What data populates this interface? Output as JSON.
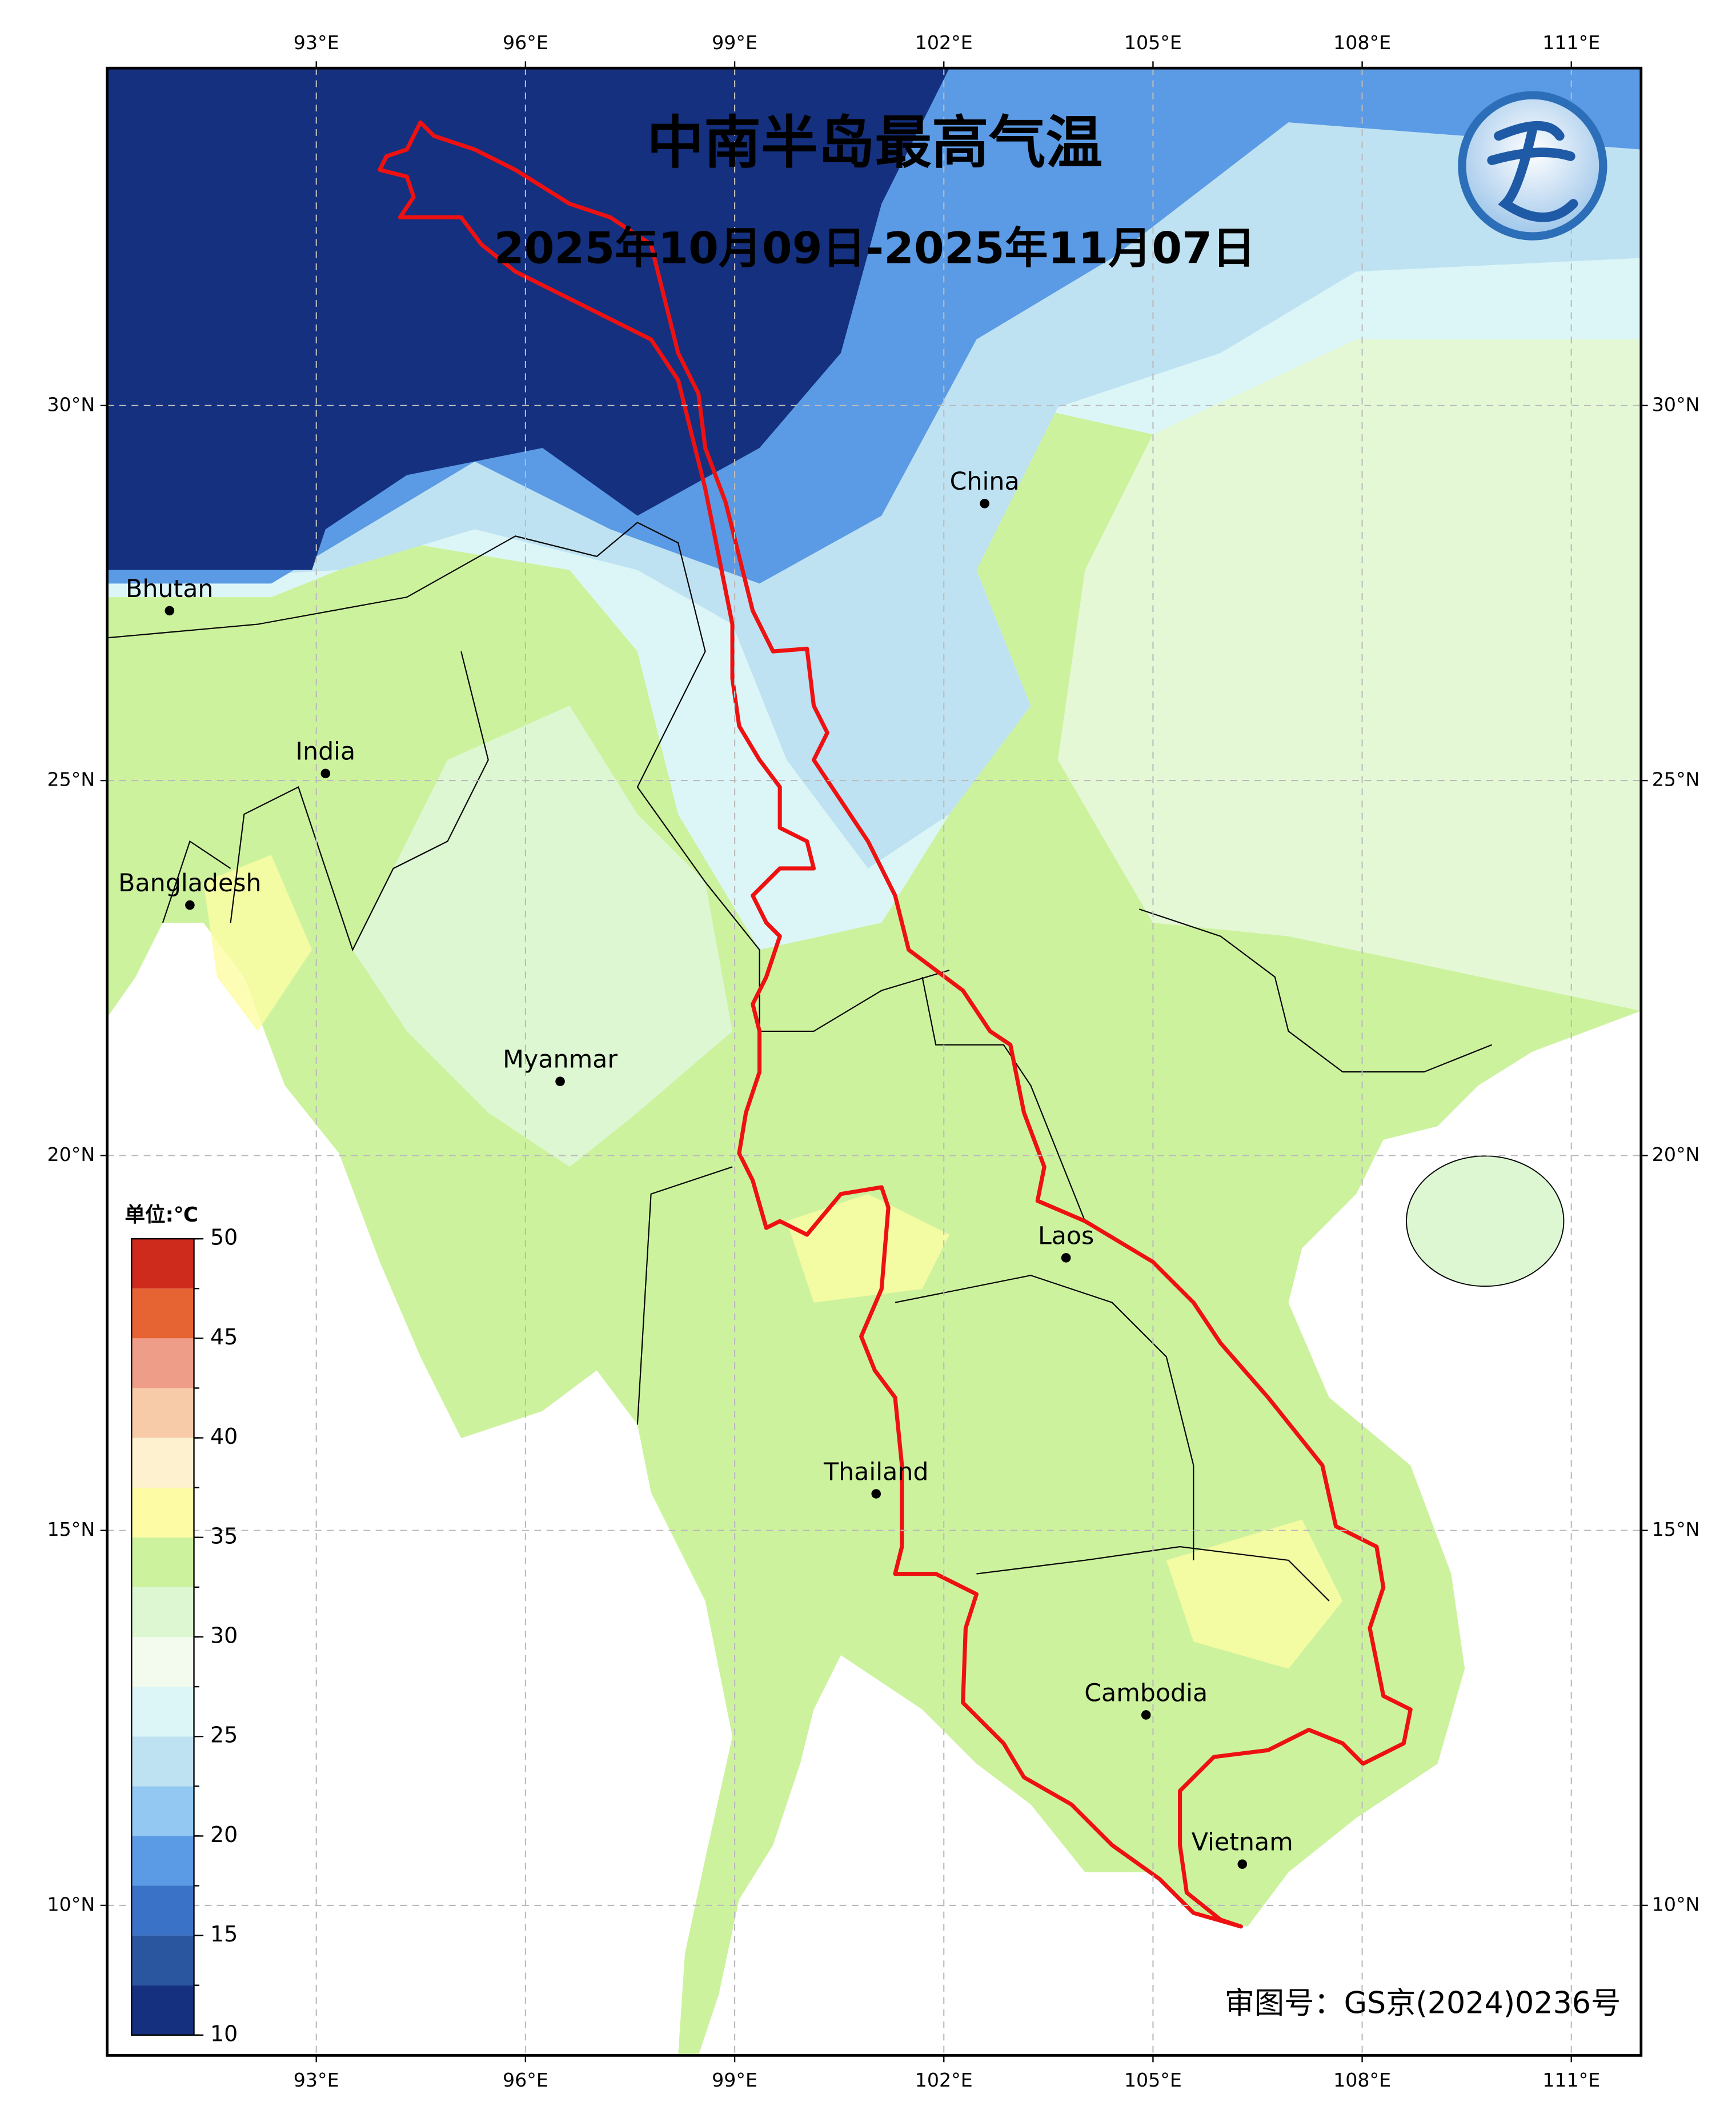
{
  "title": "中南半岛最高气温",
  "subtitle": "2025年10月09日-2025年11月07日",
  "map": {
    "xlim": [
      90,
      112
    ],
    "ylim": [
      8,
      34.5
    ],
    "grid": true,
    "lon_ticks": [
      {
        "value": 93,
        "label": "93°E"
      },
      {
        "value": 96,
        "label": "96°E"
      },
      {
        "value": 99,
        "label": "99°E"
      },
      {
        "value": 102,
        "label": "102°E"
      },
      {
        "value": 105,
        "label": "105°E"
      },
      {
        "value": 108,
        "label": "108°E"
      },
      {
        "value": 111,
        "label": "111°E"
      }
    ],
    "lat_ticks": [
      {
        "value": 10,
        "label": "10°N"
      },
      {
        "value": 15,
        "label": "15°N"
      },
      {
        "value": 20,
        "label": "20°N"
      },
      {
        "value": 25,
        "label": "25°N"
      },
      {
        "value": 30,
        "label": "30°N"
      }
    ]
  },
  "places": [
    "China",
    "Bhutan",
    "India",
    "Bangladesh",
    "Myanmar",
    "Laos",
    "Thailand",
    "Cambodia",
    "Vietnam"
  ],
  "colorbar": {
    "title": "单位:℃",
    "bounds": [
      10,
      12.5,
      15,
      17.5,
      20,
      22.5,
      25,
      27.5,
      30,
      32.5,
      35,
      37.5,
      40,
      42.5,
      45,
      47.5,
      50
    ],
    "colors": [
      "#14307e",
      "#2a56a0",
      "#3a72c8",
      "#5b9ae4",
      "#92c8f2",
      "#bfe2f2",
      "#dcf6f8",
      "#f2fbee",
      "#dcf7d2",
      "#cdf29e",
      "#fdfca4",
      "#fdf1cf",
      "#f7cba8",
      "#ee9d88",
      "#e66433",
      "#cf2b1d"
    ],
    "ticks": [
      10,
      15,
      20,
      25,
      30,
      35,
      40,
      45,
      50
    ]
  },
  "approval": "审图号：GS京(2024)0236号"
}
